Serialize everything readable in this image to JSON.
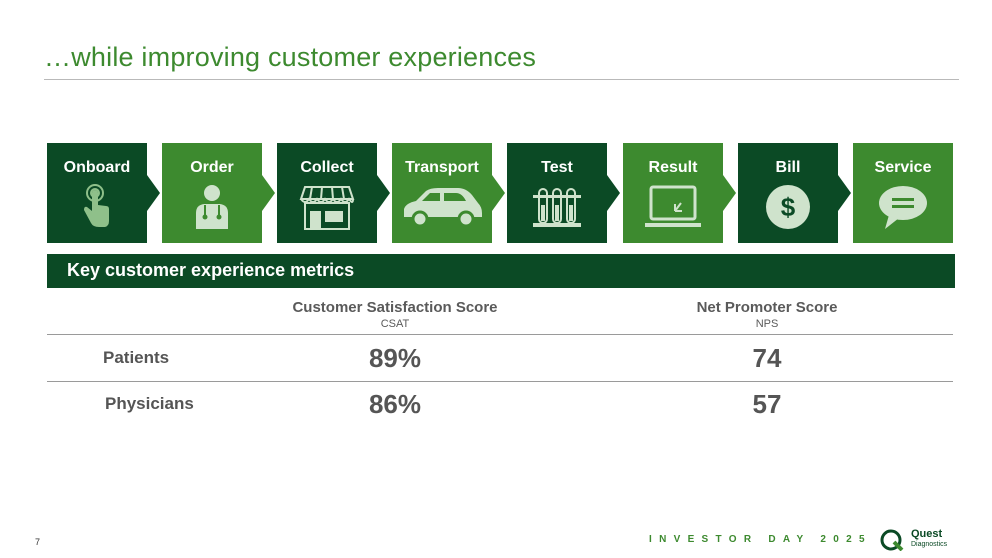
{
  "title": "…while improving customer experiences",
  "process": {
    "steps": [
      {
        "label": "Onboard",
        "icon": "touch-icon"
      },
      {
        "label": "Order",
        "icon": "doctor-icon"
      },
      {
        "label": "Collect",
        "icon": "storefront-icon"
      },
      {
        "label": "Transport",
        "icon": "car-icon"
      },
      {
        "label": "Test",
        "icon": "test-tubes-icon"
      },
      {
        "label": "Result",
        "icon": "laptop-icon"
      },
      {
        "label": "Bill",
        "icon": "dollar-icon"
      },
      {
        "label": "Service",
        "icon": "chat-bubble-icon"
      }
    ]
  },
  "metrics": {
    "header": "Key customer experience metrics",
    "columns": [
      {
        "title": "Customer Satisfaction Score",
        "abbr": "CSAT"
      },
      {
        "title": "Net Promoter Score",
        "abbr": "NPS"
      }
    ],
    "rows": [
      {
        "label": "Patients",
        "csat": "89%",
        "nps": "74"
      },
      {
        "label": "Physicians",
        "csat": "86%",
        "nps": "57"
      }
    ]
  },
  "footer": {
    "page_number": "7",
    "event": "INVESTOR DAY 2025",
    "brand": "Quest",
    "brand_sub": "Diagnostics"
  },
  "colors": {
    "dark_green": "#0b4a25",
    "light_green": "#3d8a2f",
    "title_green": "#3d8a2f"
  }
}
